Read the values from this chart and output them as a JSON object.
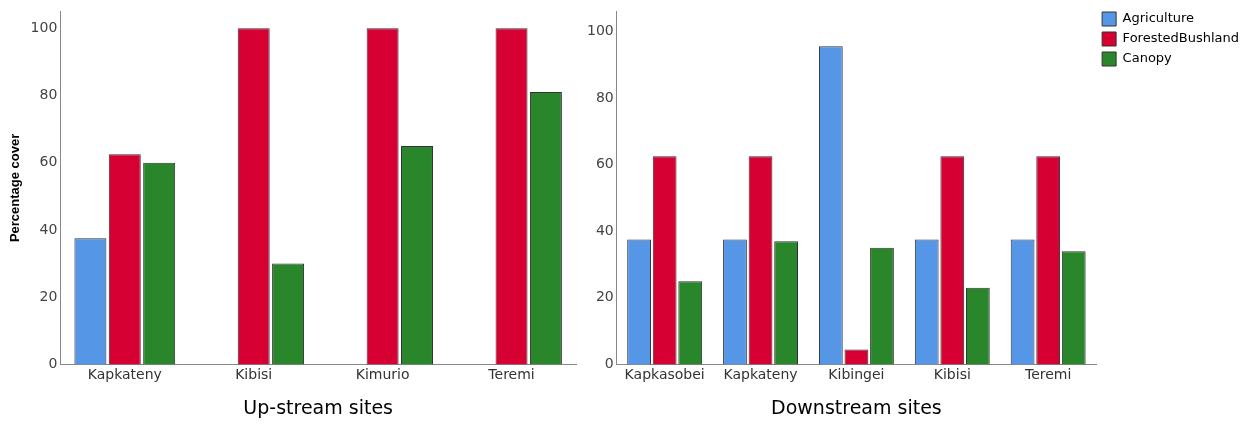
{
  "chart_data": [
    {
      "type": "bar",
      "ylabel": "Percentage cover",
      "xlabel": "Up-stream sites",
      "categories": [
        "Kapkateny",
        "Kibisi",
        "Kimurio",
        "Teremi"
      ],
      "series": [
        {
          "color": "#5596e6",
          "values": [
            37.5,
            0,
            0,
            0
          ]
        },
        {
          "color": "#d60032",
          "values": [
            62.5,
            100,
            100,
            100
          ]
        },
        {
          "color": "#29862a",
          "values": [
            60,
            30,
            65,
            81
          ]
        }
      ],
      "ylim": [
        0,
        105
      ],
      "yticks": [
        0,
        20,
        40,
        60,
        80,
        100
      ],
      "grid": false,
      "legend": false
    },
    {
      "type": "bar",
      "xlabel": "Downstream sites",
      "categories": [
        "Kapkasobei",
        "Kapkateny",
        "Kibingei",
        "Kibisi",
        "Teremi"
      ],
      "series": [
        {
          "name": "Agriculture",
          "color": "#5596e6",
          "values": [
            37.5,
            37.5,
            95.5,
            37.5,
            37.5
          ]
        },
        {
          "name": "ForestedBushland",
          "color": "#d60032",
          "values": [
            62.5,
            62.5,
            4.5,
            62.5,
            62.5
          ]
        },
        {
          "name": "Canopy",
          "color": "#29862a",
          "values": [
            25,
            37,
            35,
            23,
            34
          ]
        }
      ],
      "ylim": [
        0,
        106
      ],
      "yticks": [
        0,
        20,
        40,
        60,
        80,
        100
      ],
      "grid": false,
      "legend": "top right"
    }
  ]
}
